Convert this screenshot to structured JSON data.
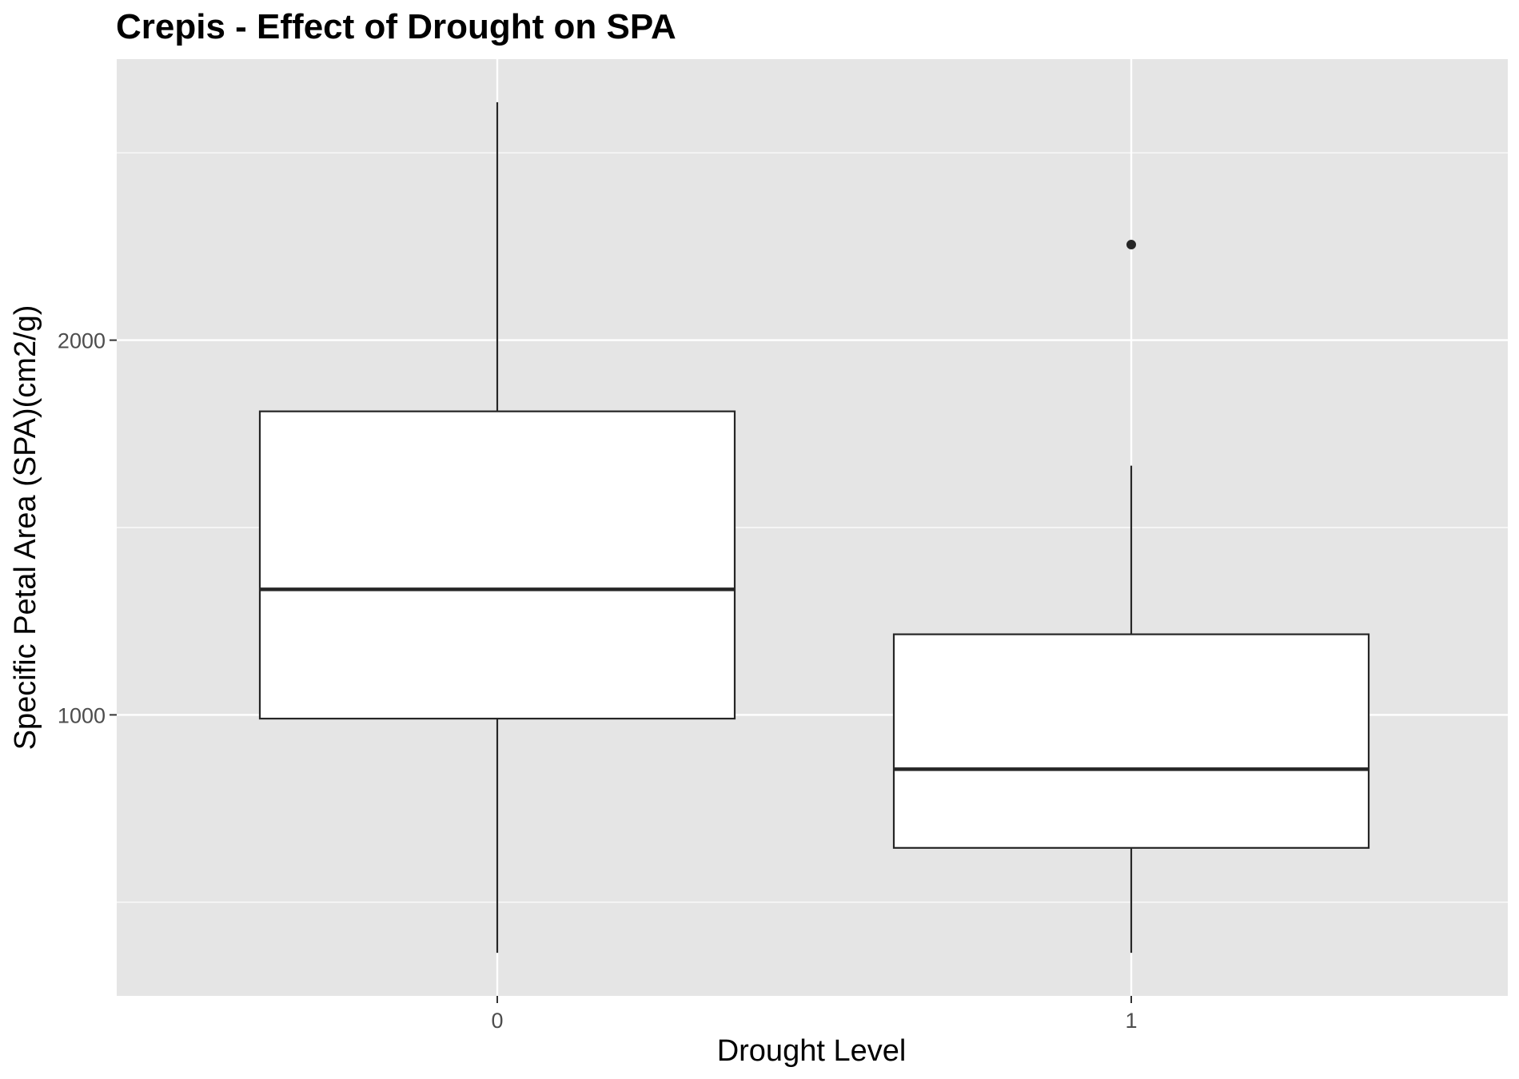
{
  "chart_data": {
    "type": "box",
    "title": "Crepis - Effect of Drought on SPA",
    "xlabel": "Drought Level",
    "ylabel": "Specific Petal Area (SPA)(cm2/g)",
    "categories": [
      "0",
      "1"
    ],
    "ylim": [
      250,
      2750
    ],
    "yticks": [
      1000,
      2000
    ],
    "boxes": [
      {
        "category": "0",
        "lower_whisker": 365,
        "q1": 990,
        "median": 1335,
        "q3": 1810,
        "upper_whisker": 2635,
        "outliers": []
      },
      {
        "category": "1",
        "lower_whisker": 365,
        "q1": 645,
        "median": 855,
        "q3": 1215,
        "upper_whisker": 1665,
        "outliers": [
          2255
        ]
      }
    ],
    "grid": true,
    "colors": {
      "panel_background": "#e5e5e5",
      "grid": "#ffffff",
      "box_fill": "#ffffff",
      "box_line": "#262626",
      "tick_label": "#4d4d4d"
    }
  }
}
